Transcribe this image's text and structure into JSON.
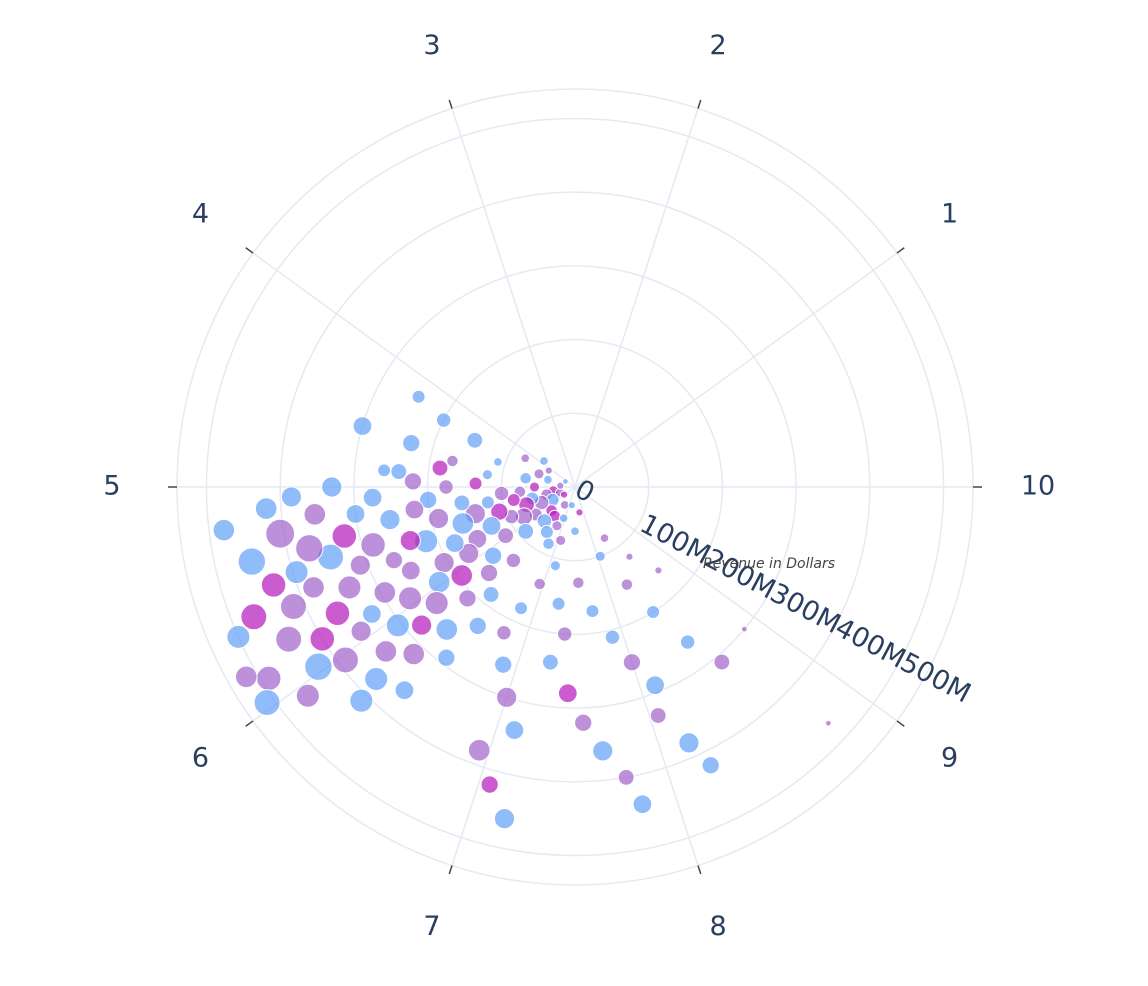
{
  "chart_data": {
    "type": "scatter",
    "subtype": "polar-bubble",
    "title": "",
    "angular_axis": {
      "tick_labels": [
        "1",
        "2",
        "3",
        "4",
        "5",
        "6",
        "7",
        "8",
        "9",
        "10"
      ],
      "direction": "counterclockwise",
      "category_10_position": "east"
    },
    "radial_axis": {
      "title": "Revenue in Dollars",
      "tick_labels": [
        "0",
        "100M",
        "200M",
        "300M",
        "400M",
        "500M"
      ],
      "range": [
        0,
        540
      ],
      "unit": "M"
    },
    "grid": true,
    "colors": {
      "blue": "#5b9cf6",
      "violet": "#9e5cc9",
      "magenta": "#b51dbd",
      "text": "#2a3f5f",
      "grid": "#e6e9f2"
    },
    "points_note": "r in millions of dollars, theta in degrees counterclockwise from east, size relative, c = color group",
    "points": [
      {
        "r": 30,
        "theta": 190,
        "size": 7,
        "c": "magenta"
      },
      {
        "r": 22,
        "theta": 200,
        "size": 6,
        "c": "violet"
      },
      {
        "r": 40,
        "theta": 195,
        "size": 8,
        "c": "violet"
      },
      {
        "r": 18,
        "theta": 215,
        "size": 5,
        "c": "magenta"
      },
      {
        "r": 35,
        "theta": 210,
        "size": 9,
        "c": "blue"
      },
      {
        "r": 45,
        "theta": 225,
        "size": 8,
        "c": "magenta"
      },
      {
        "r": 28,
        "theta": 240,
        "size": 6,
        "c": "violet"
      },
      {
        "r": 50,
        "theta": 205,
        "size": 10,
        "c": "violet"
      },
      {
        "r": 55,
        "theta": 180,
        "size": 7,
        "c": "magenta"
      },
      {
        "r": 60,
        "theta": 195,
        "size": 9,
        "c": "blue"
      },
      {
        "r": 48,
        "theta": 235,
        "size": 8,
        "c": "magenta"
      },
      {
        "r": 65,
        "theta": 215,
        "size": 9,
        "c": "violet"
      },
      {
        "r": 70,
        "theta": 200,
        "size": 11,
        "c": "magenta"
      },
      {
        "r": 75,
        "theta": 185,
        "size": 8,
        "c": "violet"
      },
      {
        "r": 62,
        "theta": 228,
        "size": 10,
        "c": "blue"
      },
      {
        "r": 80,
        "theta": 210,
        "size": 12,
        "c": "violet"
      },
      {
        "r": 85,
        "theta": 192,
        "size": 9,
        "c": "magenta"
      },
      {
        "r": 90,
        "theta": 222,
        "size": 11,
        "c": "blue"
      },
      {
        "r": 95,
        "theta": 205,
        "size": 10,
        "c": "violet"
      },
      {
        "r": 38,
        "theta": 165,
        "size": 6,
        "c": "blue"
      },
      {
        "r": 52,
        "theta": 160,
        "size": 7,
        "c": "violet"
      },
      {
        "r": 68,
        "theta": 170,
        "size": 8,
        "c": "blue"
      },
      {
        "r": 45,
        "theta": 250,
        "size": 6,
        "c": "blue"
      },
      {
        "r": 58,
        "theta": 245,
        "size": 7,
        "c": "violet"
      },
      {
        "r": 72,
        "theta": 238,
        "size": 9,
        "c": "blue"
      },
      {
        "r": 100,
        "theta": 185,
        "size": 10,
        "c": "violet"
      },
      {
        "r": 108,
        "theta": 198,
        "size": 12,
        "c": "magenta"
      },
      {
        "r": 115,
        "theta": 215,
        "size": 11,
        "c": "violet"
      },
      {
        "r": 120,
        "theta": 190,
        "size": 9,
        "c": "blue"
      },
      {
        "r": 125,
        "theta": 205,
        "size": 13,
        "c": "blue"
      },
      {
        "r": 130,
        "theta": 230,
        "size": 10,
        "c": "violet"
      },
      {
        "r": 135,
        "theta": 178,
        "size": 9,
        "c": "magenta"
      },
      {
        "r": 140,
        "theta": 195,
        "size": 14,
        "c": "violet"
      },
      {
        "r": 145,
        "theta": 220,
        "size": 12,
        "c": "blue"
      },
      {
        "r": 150,
        "theta": 208,
        "size": 13,
        "c": "violet"
      },
      {
        "r": 155,
        "theta": 188,
        "size": 11,
        "c": "blue"
      },
      {
        "r": 160,
        "theta": 198,
        "size": 15,
        "c": "blue"
      },
      {
        "r": 165,
        "theta": 225,
        "size": 12,
        "c": "violet"
      },
      {
        "r": 170,
        "theta": 212,
        "size": 14,
        "c": "violet"
      },
      {
        "r": 175,
        "theta": 180,
        "size": 10,
        "c": "violet"
      },
      {
        "r": 180,
        "theta": 205,
        "size": 13,
        "c": "blue"
      },
      {
        "r": 185,
        "theta": 232,
        "size": 11,
        "c": "blue"
      },
      {
        "r": 190,
        "theta": 193,
        "size": 14,
        "c": "violet"
      },
      {
        "r": 195,
        "theta": 218,
        "size": 15,
        "c": "magenta"
      },
      {
        "r": 200,
        "theta": 185,
        "size": 12,
        "c": "blue"
      },
      {
        "r": 205,
        "theta": 210,
        "size": 14,
        "c": "violet"
      },
      {
        "r": 210,
        "theta": 226,
        "size": 12,
        "c": "violet"
      },
      {
        "r": 215,
        "theta": 200,
        "size": 16,
        "c": "blue"
      },
      {
        "r": 220,
        "theta": 188,
        "size": 13,
        "c": "violet"
      },
      {
        "r": 225,
        "theta": 215,
        "size": 15,
        "c": "blue"
      },
      {
        "r": 230,
        "theta": 235,
        "size": 12,
        "c": "blue"
      },
      {
        "r": 235,
        "theta": 198,
        "size": 14,
        "c": "magenta"
      },
      {
        "r": 240,
        "theta": 175,
        "size": 11,
        "c": "blue"
      },
      {
        "r": 245,
        "theta": 220,
        "size": 16,
        "c": "violet"
      },
      {
        "r": 250,
        "theta": 207,
        "size": 13,
        "c": "violet"
      },
      {
        "r": 255,
        "theta": 190,
        "size": 14,
        "c": "blue"
      },
      {
        "r": 260,
        "theta": 228,
        "size": 15,
        "c": "blue"
      },
      {
        "r": 265,
        "theta": 202,
        "size": 12,
        "c": "violet"
      },
      {
        "r": 270,
        "theta": 214,
        "size": 16,
        "c": "violet"
      },
      {
        "r": 275,
        "theta": 183,
        "size": 13,
        "c": "blue"
      },
      {
        "r": 280,
        "theta": 222,
        "size": 14,
        "c": "magenta"
      },
      {
        "r": 285,
        "theta": 196,
        "size": 17,
        "c": "violet"
      },
      {
        "r": 290,
        "theta": 233,
        "size": 12,
        "c": "blue"
      },
      {
        "r": 295,
        "theta": 209,
        "size": 15,
        "c": "violet"
      },
      {
        "r": 300,
        "theta": 187,
        "size": 13,
        "c": "blue"
      },
      {
        "r": 305,
        "theta": 218,
        "size": 16,
        "c": "blue"
      },
      {
        "r": 310,
        "theta": 200,
        "size": 14,
        "c": "violet"
      },
      {
        "r": 315,
        "theta": 226,
        "size": 15,
        "c": "violet"
      },
      {
        "r": 320,
        "theta": 192,
        "size": 17,
        "c": "magenta"
      },
      {
        "r": 325,
        "theta": 212,
        "size": 13,
        "c": "blue"
      },
      {
        "r": 330,
        "theta": 180,
        "size": 14,
        "c": "blue"
      },
      {
        "r": 335,
        "theta": 204,
        "size": 16,
        "c": "violet"
      },
      {
        "r": 340,
        "theta": 221,
        "size": 15,
        "c": "violet"
      },
      {
        "r": 345,
        "theta": 196,
        "size": 18,
        "c": "blue"
      },
      {
        "r": 350,
        "theta": 214,
        "size": 14,
        "c": "violet"
      },
      {
        "r": 355,
        "theta": 186,
        "size": 15,
        "c": "violet"
      },
      {
        "r": 360,
        "theta": 230,
        "size": 13,
        "c": "blue"
      },
      {
        "r": 365,
        "theta": 208,
        "size": 17,
        "c": "magenta"
      },
      {
        "r": 370,
        "theta": 193,
        "size": 19,
        "c": "violet"
      },
      {
        "r": 375,
        "theta": 224,
        "size": 16,
        "c": "blue"
      },
      {
        "r": 380,
        "theta": 201,
        "size": 15,
        "c": "violet"
      },
      {
        "r": 385,
        "theta": 182,
        "size": 14,
        "c": "blue"
      },
      {
        "r": 390,
        "theta": 217,
        "size": 18,
        "c": "violet"
      },
      {
        "r": 395,
        "theta": 197,
        "size": 16,
        "c": "blue"
      },
      {
        "r": 400,
        "theta": 211,
        "size": 17,
        "c": "magenta"
      },
      {
        "r": 405,
        "theta": 189,
        "size": 20,
        "c": "violet"
      },
      {
        "r": 410,
        "theta": 225,
        "size": 16,
        "c": "blue"
      },
      {
        "r": 415,
        "theta": 203,
        "size": 18,
        "c": "violet"
      },
      {
        "r": 420,
        "theta": 184,
        "size": 15,
        "c": "blue"
      },
      {
        "r": 425,
        "theta": 215,
        "size": 19,
        "c": "blue"
      },
      {
        "r": 430,
        "theta": 198,
        "size": 17,
        "c": "magenta"
      },
      {
        "r": 440,
        "theta": 208,
        "size": 18,
        "c": "violet"
      },
      {
        "r": 450,
        "theta": 193,
        "size": 19,
        "c": "blue"
      },
      {
        "r": 460,
        "theta": 218,
        "size": 16,
        "c": "violet"
      },
      {
        "r": 470,
        "theta": 202,
        "size": 18,
        "c": "magenta"
      },
      {
        "r": 480,
        "theta": 187,
        "size": 15,
        "c": "blue"
      },
      {
        "r": 490,
        "theta": 212,
        "size": 17,
        "c": "violet"
      },
      {
        "r": 500,
        "theta": 204,
        "size": 16,
        "c": "blue"
      },
      {
        "r": 510,
        "theta": 215,
        "size": 18,
        "c": "blue"
      },
      {
        "r": 515,
        "theta": 210,
        "size": 15,
        "c": "violet"
      },
      {
        "r": 260,
        "theta": 248,
        "size": 12,
        "c": "blue"
      },
      {
        "r": 300,
        "theta": 252,
        "size": 14,
        "c": "violet"
      },
      {
        "r": 340,
        "theta": 256,
        "size": 13,
        "c": "blue"
      },
      {
        "r": 380,
        "theta": 250,
        "size": 15,
        "c": "violet"
      },
      {
        "r": 420,
        "theta": 254,
        "size": 12,
        "c": "magenta"
      },
      {
        "r": 460,
        "theta": 258,
        "size": 14,
        "c": "blue"
      },
      {
        "r": 220,
        "theta": 244,
        "size": 10,
        "c": "violet"
      },
      {
        "r": 180,
        "theta": 246,
        "size": 9,
        "c": "blue"
      },
      {
        "r": 140,
        "theta": 250,
        "size": 8,
        "c": "violet"
      },
      {
        "r": 110,
        "theta": 256,
        "size": 7,
        "c": "blue"
      },
      {
        "r": 160,
        "theta": 262,
        "size": 9,
        "c": "blue"
      },
      {
        "r": 200,
        "theta": 266,
        "size": 10,
        "c": "violet"
      },
      {
        "r": 240,
        "theta": 262,
        "size": 11,
        "c": "blue"
      },
      {
        "r": 280,
        "theta": 268,
        "size": 13,
        "c": "magenta"
      },
      {
        "r": 320,
        "theta": 272,
        "size": 12,
        "c": "violet"
      },
      {
        "r": 360,
        "theta": 276,
        "size": 14,
        "c": "blue"
      },
      {
        "r": 400,
        "theta": 280,
        "size": 11,
        "c": "violet"
      },
      {
        "r": 440,
        "theta": 282,
        "size": 13,
        "c": "blue"
      },
      {
        "r": 130,
        "theta": 272,
        "size": 8,
        "c": "violet"
      },
      {
        "r": 170,
        "theta": 278,
        "size": 9,
        "c": "blue"
      },
      {
        "r": 210,
        "theta": 284,
        "size": 10,
        "c": "blue"
      },
      {
        "r": 250,
        "theta": 288,
        "size": 12,
        "c": "violet"
      },
      {
        "r": 290,
        "theta": 292,
        "size": 13,
        "c": "blue"
      },
      {
        "r": 330,
        "theta": 290,
        "size": 11,
        "c": "violet"
      },
      {
        "r": 380,
        "theta": 294,
        "size": 14,
        "c": "blue"
      },
      {
        "r": 420,
        "theta": 296,
        "size": 12,
        "c": "blue"
      },
      {
        "r": 100,
        "theta": 290,
        "size": 7,
        "c": "blue"
      },
      {
        "r": 150,
        "theta": 298,
        "size": 8,
        "c": "violet"
      },
      {
        "r": 200,
        "theta": 302,
        "size": 9,
        "c": "blue"
      },
      {
        "r": 260,
        "theta": 306,
        "size": 10,
        "c": "blue"
      },
      {
        "r": 310,
        "theta": 310,
        "size": 11,
        "c": "violet"
      },
      {
        "r": 80,
        "theta": 300,
        "size": 6,
        "c": "violet"
      },
      {
        "r": 120,
        "theta": 308,
        "size": 5,
        "c": "violet"
      },
      {
        "r": 160,
        "theta": 315,
        "size": 5,
        "c": "violet"
      },
      {
        "r": 300,
        "theta": 320,
        "size": 4,
        "c": "violet"
      },
      {
        "r": 470,
        "theta": 317,
        "size": 4,
        "c": "violet"
      },
      {
        "r": 60,
        "theta": 270,
        "size": 6,
        "c": "blue"
      },
      {
        "r": 75,
        "theta": 255,
        "size": 7,
        "c": "violet"
      },
      {
        "r": 85,
        "theta": 245,
        "size": 8,
        "c": "blue"
      },
      {
        "r": 35,
        "theta": 280,
        "size": 5,
        "c": "magenta"
      },
      {
        "r": 25,
        "theta": 260,
        "size": 5,
        "c": "blue"
      },
      {
        "r": 20,
        "theta": 175,
        "size": 5,
        "c": "violet"
      },
      {
        "r": 15,
        "theta": 150,
        "size": 4,
        "c": "blue"
      },
      {
        "r": 42,
        "theta": 148,
        "size": 5,
        "c": "violet"
      },
      {
        "r": 55,
        "theta": 140,
        "size": 6,
        "c": "blue"
      },
      {
        "r": 78,
        "theta": 150,
        "size": 6,
        "c": "violet"
      },
      {
        "r": 110,
        "theta": 162,
        "size": 6,
        "c": "blue"
      },
      {
        "r": 150,
        "theta": 155,
        "size": 11,
        "c": "blue"
      },
      {
        "r": 200,
        "theta": 153,
        "size": 10,
        "c": "blue"
      },
      {
        "r": 245,
        "theta": 150,
        "size": 9,
        "c": "blue"
      },
      {
        "r": 120,
        "theta": 172,
        "size": 7,
        "c": "blue"
      },
      {
        "r": 170,
        "theta": 168,
        "size": 8,
        "c": "violet"
      },
      {
        "r": 185,
        "theta": 172,
        "size": 11,
        "c": "magenta"
      },
      {
        "r": 230,
        "theta": 165,
        "size": 12,
        "c": "blue"
      },
      {
        "r": 300,
        "theta": 164,
        "size": 13,
        "c": "blue"
      },
      {
        "r": 260,
        "theta": 175,
        "size": 9,
        "c": "blue"
      },
      {
        "r": 220,
        "theta": 178,
        "size": 12,
        "c": "violet"
      }
    ]
  }
}
